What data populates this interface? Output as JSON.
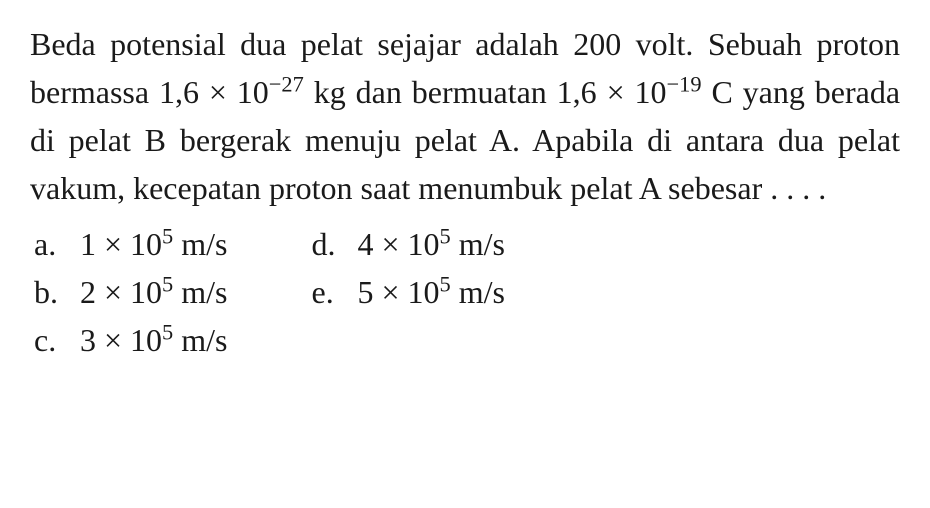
{
  "question": {
    "line1": "Beda potensial dua pelat sejajar adalah 200 volt.",
    "line2_pre": "Sebuah proton bermassa 1,6 × 10",
    "line2_exp": "−27",
    "line2_post": " kg dan",
    "line3_pre": "bermuatan 1,6 × 10",
    "line3_exp": "−19",
    "line3_post": " C yang berada di pelat B",
    "line4": "bergerak menuju pelat A. Apabila di antara dua",
    "line5": "pelat vakum, kecepatan proton saat menumbuk",
    "line6": "pelat A sebesar . . . ."
  },
  "options": {
    "a": {
      "label": "a.",
      "coef": "1 × 10",
      "exp": "5",
      "unit": " m/s"
    },
    "b": {
      "label": "b.",
      "coef": "2 × 10",
      "exp": "5",
      "unit": " m/s"
    },
    "c": {
      "label": "c.",
      "coef": "3 × 10",
      "exp": "5",
      "unit": " m/s"
    },
    "d": {
      "label": "d.",
      "coef": "4 × 10",
      "exp": "5",
      "unit": " m/s"
    },
    "e": {
      "label": "e.",
      "coef": "5 × 10",
      "exp": "5",
      "unit": " m/s"
    }
  },
  "style": {
    "background_color": "#ffffff",
    "text_color": "#1a1a1a",
    "font_family": "Times New Roman",
    "font_size_pt": 24
  }
}
